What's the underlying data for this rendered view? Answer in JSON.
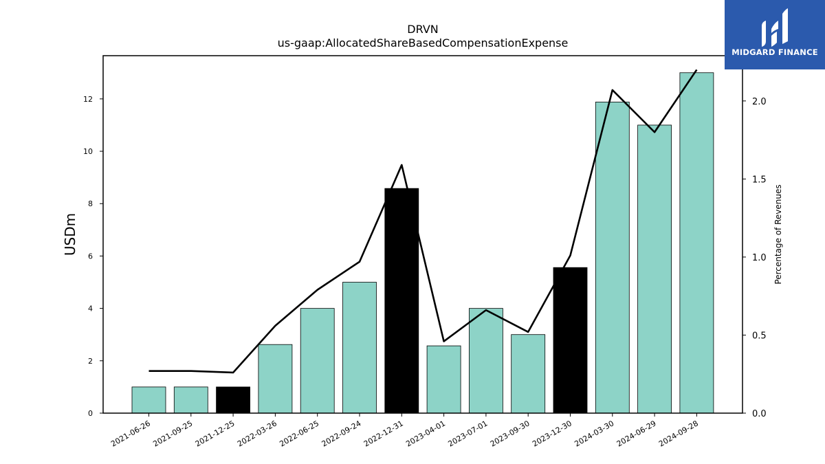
{
  "chart_data": {
    "type": "bar",
    "title": "DRVN",
    "subtitle": "us-gaap:AllocatedShareBasedCompensationExpense",
    "ylabel": "USDm",
    "y2label": "Percentage of Revenues",
    "ylim": [
      0,
      13.65
    ],
    "y2lim": [
      0,
      2.29
    ],
    "yticks": [
      "0",
      "2",
      "4",
      "6",
      "8",
      "10",
      "12"
    ],
    "y2ticks": [
      "0.0",
      "0.5",
      "1.0",
      "1.5",
      "2.0"
    ],
    "grid": false,
    "categories": [
      "2021-06-26",
      "2021-09-25",
      "2021-12-25",
      "2022-03-26",
      "2022-06-25",
      "2022-09-24",
      "2022-12-31",
      "2023-04-01",
      "2023-07-01",
      "2023-09-30",
      "2023-12-30",
      "2024-03-30",
      "2024-06-29",
      "2024-09-28"
    ],
    "series": [
      {
        "type": "bar",
        "values": [
          1.0,
          1.0,
          1.0,
          2.62,
          4.0,
          5.0,
          8.58,
          2.57,
          4.0,
          3.0,
          5.56,
          11.88,
          11.0,
          13.0
        ],
        "colors": [
          "#8dd3c7",
          "#8dd3c7",
          "#000000",
          "#8dd3c7",
          "#8dd3c7",
          "#8dd3c7",
          "#000000",
          "#8dd3c7",
          "#8dd3c7",
          "#8dd3c7",
          "#000000",
          "#8dd3c7",
          "#8dd3c7",
          "#8dd3c7"
        ]
      },
      {
        "type": "line",
        "axis": "right",
        "values": [
          0.27,
          0.27,
          0.26,
          0.56,
          0.79,
          0.97,
          1.59,
          0.46,
          0.66,
          0.52,
          1.01,
          2.07,
          1.8,
          2.2
        ],
        "color": "#000000"
      }
    ]
  },
  "logo": {
    "text": "MIDGARD FINANCE",
    "color": "#2b5aad"
  }
}
